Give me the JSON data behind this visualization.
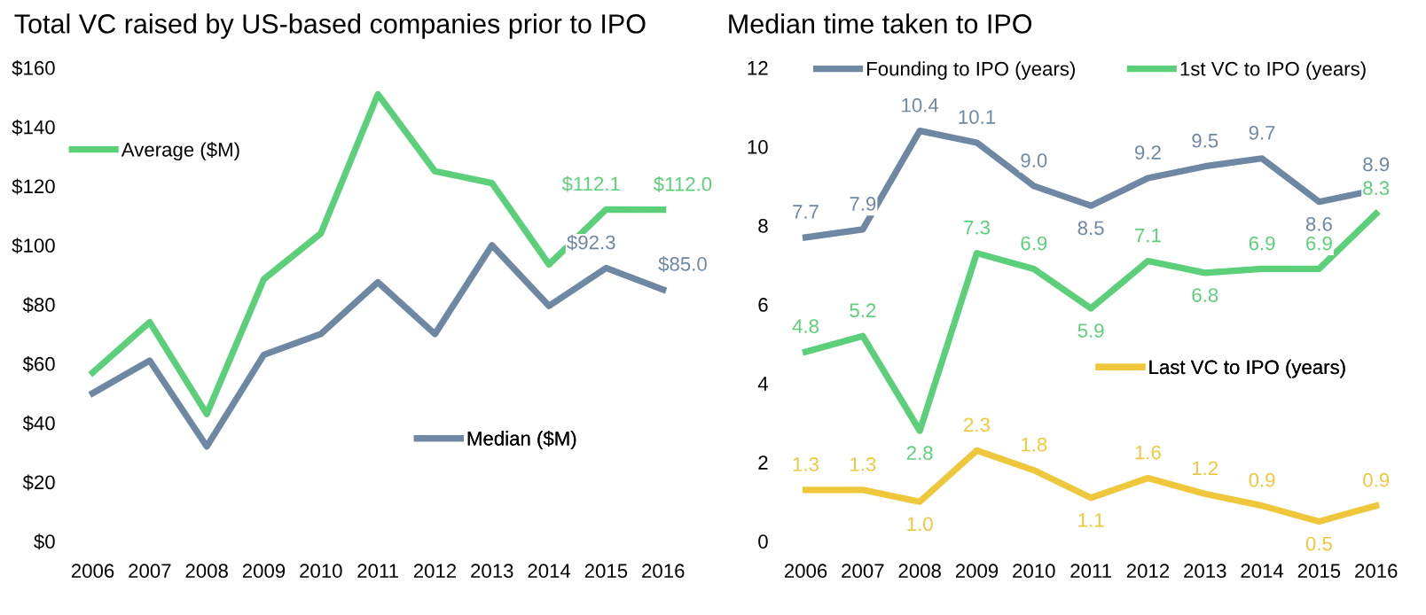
{
  "chart_data": [
    {
      "type": "line",
      "title": "Total VC raised by US-based companies prior to IPO",
      "categories": [
        "2006",
        "2007",
        "2008",
        "2009",
        "2010",
        "2011",
        "2012",
        "2013",
        "2014",
        "2015",
        "2016"
      ],
      "series": [
        {
          "name": "Average ($M)",
          "color": "#5ccf7a",
          "values": [
            57,
            74,
            43,
            88.5,
            104,
            151,
            125,
            121,
            93.5,
            112.1,
            112.0
          ],
          "value_labels": [
            null,
            null,
            null,
            null,
            null,
            null,
            null,
            null,
            null,
            "$112.1",
            "$112.0"
          ]
        },
        {
          "name": "Median ($M)",
          "color": "#6e88a3",
          "values": [
            50,
            61,
            32,
            63,
            70,
            87.5,
            70,
            100,
            79.5,
            92.3,
            85.0
          ],
          "value_labels": [
            null,
            null,
            null,
            null,
            null,
            null,
            null,
            null,
            null,
            "$92.3",
            "$85.0"
          ]
        }
      ],
      "ylim": [
        0,
        160
      ],
      "yticks": [
        {
          "value": 0,
          "label": "$0"
        },
        {
          "value": 20,
          "label": "$20"
        },
        {
          "value": 40,
          "label": "$40"
        },
        {
          "value": 60,
          "label": "$60"
        },
        {
          "value": 80,
          "label": "$80"
        },
        {
          "value": 100,
          "label": "$100"
        },
        {
          "value": 120,
          "label": "$120"
        },
        {
          "value": 140,
          "label": "$140"
        },
        {
          "value": 160,
          "label": "$160"
        }
      ],
      "grid": false,
      "legend": "top left",
      "marker": "none"
    },
    {
      "type": "line",
      "title": "Median time taken to IPO",
      "categories": [
        "2006",
        "2007",
        "2008",
        "2009",
        "2010",
        "2011",
        "2012",
        "2013",
        "2014",
        "2015",
        "2016"
      ],
      "series": [
        {
          "name": "Founding to IPO (years)",
          "color": "#6e88a3",
          "values": [
            7.7,
            7.9,
            10.4,
            10.1,
            9.0,
            8.5,
            9.2,
            9.5,
            9.7,
            8.6,
            8.9
          ],
          "value_labels": [
            "7.7",
            "7.9",
            "10.4",
            "10.1",
            "9.0",
            "8.5",
            "9.2",
            "9.5",
            "9.7",
            "8.6",
            "8.9"
          ]
        },
        {
          "name": "1st VC to IPO (years)",
          "color": "#5ccf7a",
          "values": [
            4.8,
            5.2,
            2.8,
            7.3,
            6.9,
            5.9,
            7.1,
            6.8,
            6.9,
            6.9,
            8.3
          ],
          "value_labels": [
            "4.8",
            "5.2",
            "2.8",
            "7.3",
            "6.9",
            "5.9",
            "7.1",
            "6.8",
            "6.9",
            "6.9",
            "8.3"
          ]
        },
        {
          "name": "Last VC to IPO (years)",
          "color": "#efc73b",
          "values": [
            1.3,
            1.3,
            1.0,
            2.3,
            1.8,
            1.1,
            1.6,
            1.2,
            0.9,
            0.5,
            0.9
          ],
          "value_labels": [
            "1.3",
            "1.3",
            "1.0",
            "2.3",
            "1.8",
            "1.1",
            "1.6",
            "1.2",
            "0.9",
            "0.5",
            "0.9"
          ]
        }
      ],
      "ylim": [
        0,
        12
      ],
      "yticks": [
        0,
        2,
        4,
        6,
        8,
        10,
        12
      ],
      "grid": false,
      "legend": "top",
      "marker": "none"
    }
  ]
}
